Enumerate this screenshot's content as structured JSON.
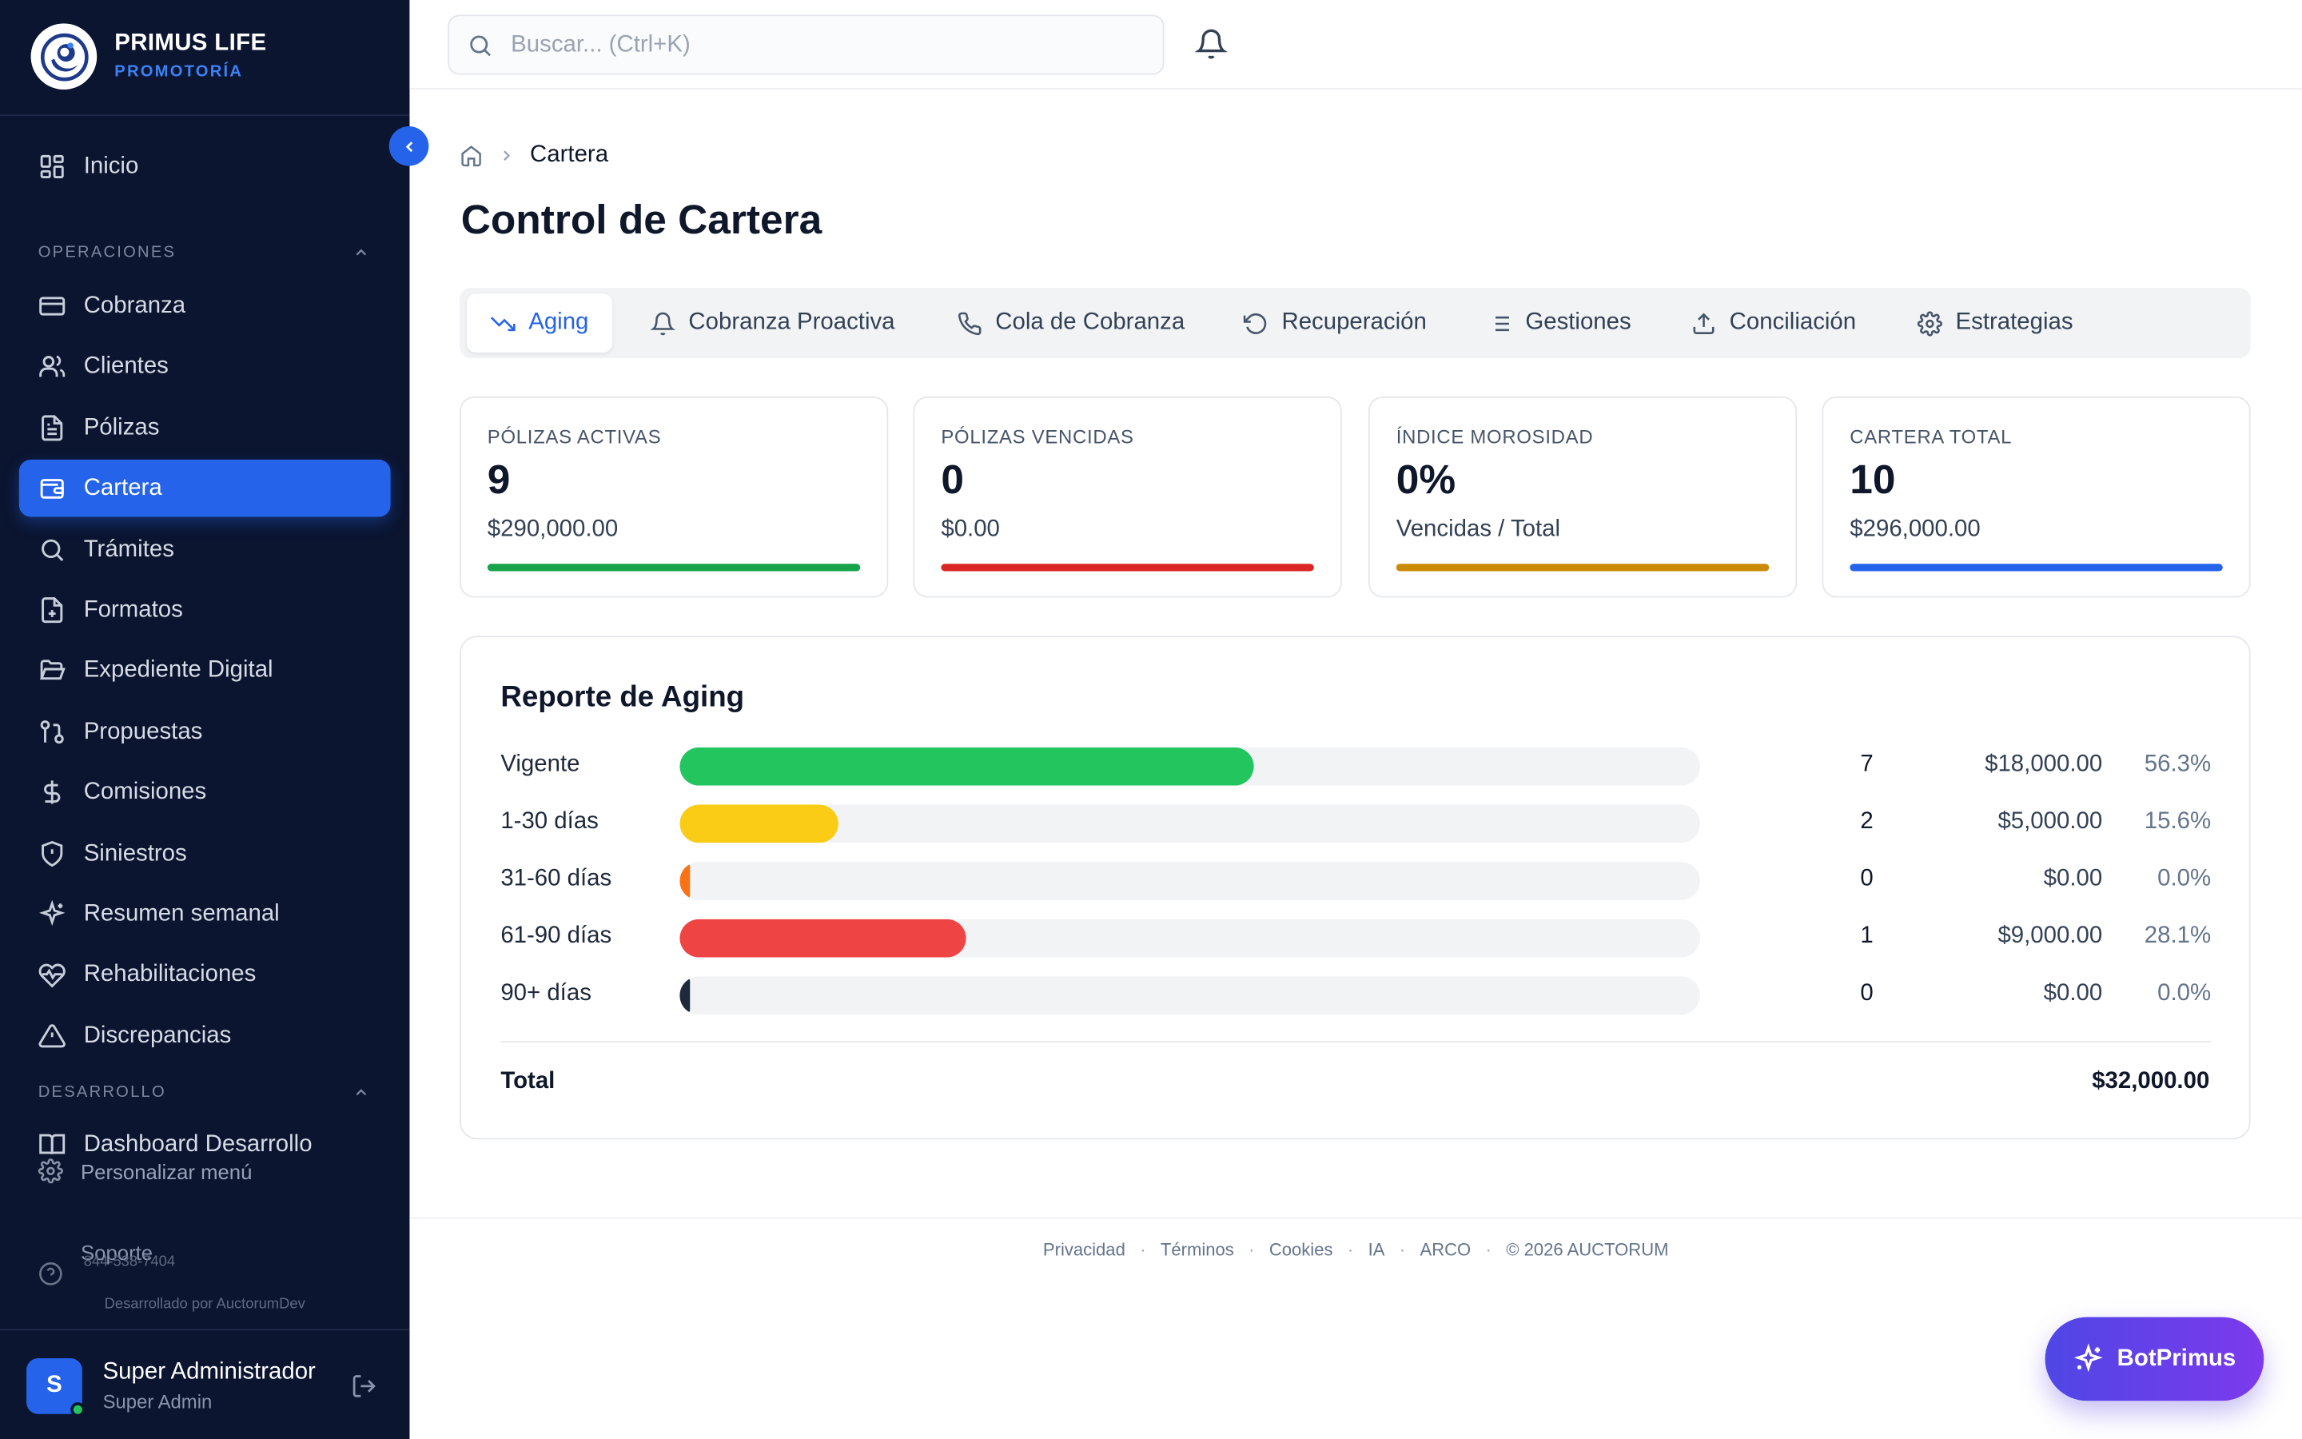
{
  "brand": {
    "title": "PRIMUS LIFE",
    "subtitle": "PROMOTORÍA"
  },
  "sidebar": {
    "home": {
      "label": "Inicio",
      "icon": "grid-icon"
    },
    "sections": [
      {
        "title": "OPERACIONES",
        "items": [
          {
            "label": "Cobranza",
            "icon": "credit-card-icon"
          },
          {
            "label": "Clientes",
            "icon": "users-icon"
          },
          {
            "label": "Pólizas",
            "icon": "document-icon"
          },
          {
            "label": "Cartera",
            "icon": "wallet-icon",
            "active": true
          },
          {
            "label": "Trámites",
            "icon": "search-icon"
          },
          {
            "label": "Formatos",
            "icon": "file-plus-icon"
          },
          {
            "label": "Expediente Digital",
            "icon": "folder-open-icon"
          },
          {
            "label": "Propuestas",
            "icon": "git-pull-icon"
          },
          {
            "label": "Comisiones",
            "icon": "dollar-icon"
          },
          {
            "label": "Siniestros",
            "icon": "shield-icon"
          },
          {
            "label": "Resumen semanal",
            "icon": "sparkles-icon"
          },
          {
            "label": "Rehabilitaciones",
            "icon": "heart-pulse-icon"
          },
          {
            "label": "Discrepancias",
            "icon": "warning-icon"
          }
        ]
      },
      {
        "title": "DESARROLLO",
        "items": [
          {
            "label": "Dashboard Desarrollo",
            "icon": "book-icon"
          }
        ]
      }
    ],
    "customize_label": "Personalizar menú",
    "support_label": "Soporte",
    "support_phone": "844-538-7404",
    "dev_credit": "Desarrollado por AuctorumDev"
  },
  "user": {
    "initial": "S",
    "name": "Super Administrador",
    "role": "Super Admin"
  },
  "search": {
    "placeholder": "Buscar... (Ctrl+K)"
  },
  "breadcrumb": {
    "current": "Cartera"
  },
  "page": {
    "title": "Control de Cartera"
  },
  "tabs": [
    {
      "label": "Aging",
      "icon": "trending-down-icon",
      "active": true
    },
    {
      "label": "Cobranza Proactiva",
      "icon": "bell-icon"
    },
    {
      "label": "Cola de Cobranza",
      "icon": "phone-icon"
    },
    {
      "label": "Recuperación",
      "icon": "rotate-ccw-icon"
    },
    {
      "label": "Gestiones",
      "icon": "list-icon"
    },
    {
      "label": "Conciliación",
      "icon": "upload-icon"
    },
    {
      "label": "Estrategias",
      "icon": "gear-icon"
    }
  ],
  "kpis": [
    {
      "label": "PÓLIZAS ACTIVAS",
      "value": "9",
      "sub": "$290,000.00",
      "color": "#16a34a"
    },
    {
      "label": "PÓLIZAS VENCIDAS",
      "value": "0",
      "sub": "$0.00",
      "color": "#dc2626"
    },
    {
      "label": "ÍNDICE MOROSIDAD",
      "value": "0%",
      "sub": "Vencidas / Total",
      "color": "#ca8a04"
    },
    {
      "label": "CARTERA TOTAL",
      "value": "10",
      "sub": "$296,000.00",
      "color": "#2563eb"
    }
  ],
  "aging": {
    "title": "Reporte de Aging",
    "rows": [
      {
        "label": "Vigente",
        "count": "7",
        "amount": "$18,000.00",
        "pct": "56.3%",
        "share": 0.563,
        "color": "#22c55e"
      },
      {
        "label": "1-30 días",
        "count": "2",
        "amount": "$5,000.00",
        "pct": "15.6%",
        "share": 0.156,
        "color": "#facc15"
      },
      {
        "label": "31-60 días",
        "count": "0",
        "amount": "$0.00",
        "pct": "0.0%",
        "share": 0,
        "color": "#f97316"
      },
      {
        "label": "61-90 días",
        "count": "1",
        "amount": "$9,000.00",
        "pct": "28.1%",
        "share": 0.281,
        "color": "#ef4444"
      },
      {
        "label": "90+ días",
        "count": "0",
        "amount": "$0.00",
        "pct": "0.0%",
        "share": 0,
        "color": "#1e293b"
      }
    ],
    "total_label": "Total",
    "total_value": "$32,000.00"
  },
  "footer": {
    "links": [
      "Privacidad",
      "Términos",
      "Cookies",
      "IA",
      "ARCO"
    ],
    "copyright": "© 2026 AUCTORUM"
  },
  "assistant": {
    "label": "BotPrimus"
  },
  "colors": {
    "sidebar_bg": "#0b1530",
    "accent": "#2563eb",
    "assistant_from": "#4f46e5",
    "assistant_to": "#7c3aed"
  }
}
